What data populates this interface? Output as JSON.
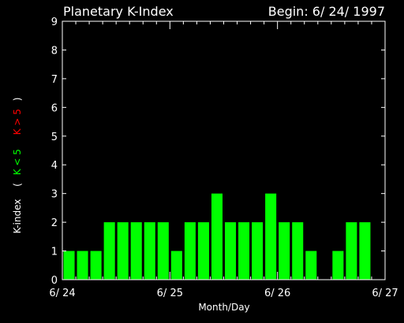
{
  "chart_data": {
    "type": "bar",
    "title": "Planetary K-Index",
    "subtitle": "Begin: 6/ 24/ 1997",
    "xlabel": "Month/Day",
    "ylabel": {
      "main": "K-index",
      "open_paren": "(",
      "low": "K < 5",
      "high": "K > 5",
      "close_paren": ")"
    },
    "ylim": [
      0,
      9
    ],
    "yticks": [
      "0",
      "1",
      "2",
      "3",
      "4",
      "5",
      "6",
      "7",
      "8",
      "9"
    ],
    "x_tick_labels": [
      "6/ 24",
      "6/ 25",
      "6/ 26",
      "6/ 27"
    ],
    "intervals_per_day": 8,
    "days": 3,
    "values": [
      1,
      1,
      1,
      2,
      2,
      2,
      2,
      2,
      1,
      2,
      2,
      3,
      2,
      2,
      2,
      3,
      2,
      2,
      1,
      0,
      1,
      2,
      2,
      null
    ],
    "colors": {
      "background": "#000000",
      "axes": "#ffffff",
      "bar_low": "#00ff00",
      "bar_high": "#ff0000",
      "label_low": "#00ff00",
      "label_high": "#ff0000"
    },
    "threshold": 5
  }
}
